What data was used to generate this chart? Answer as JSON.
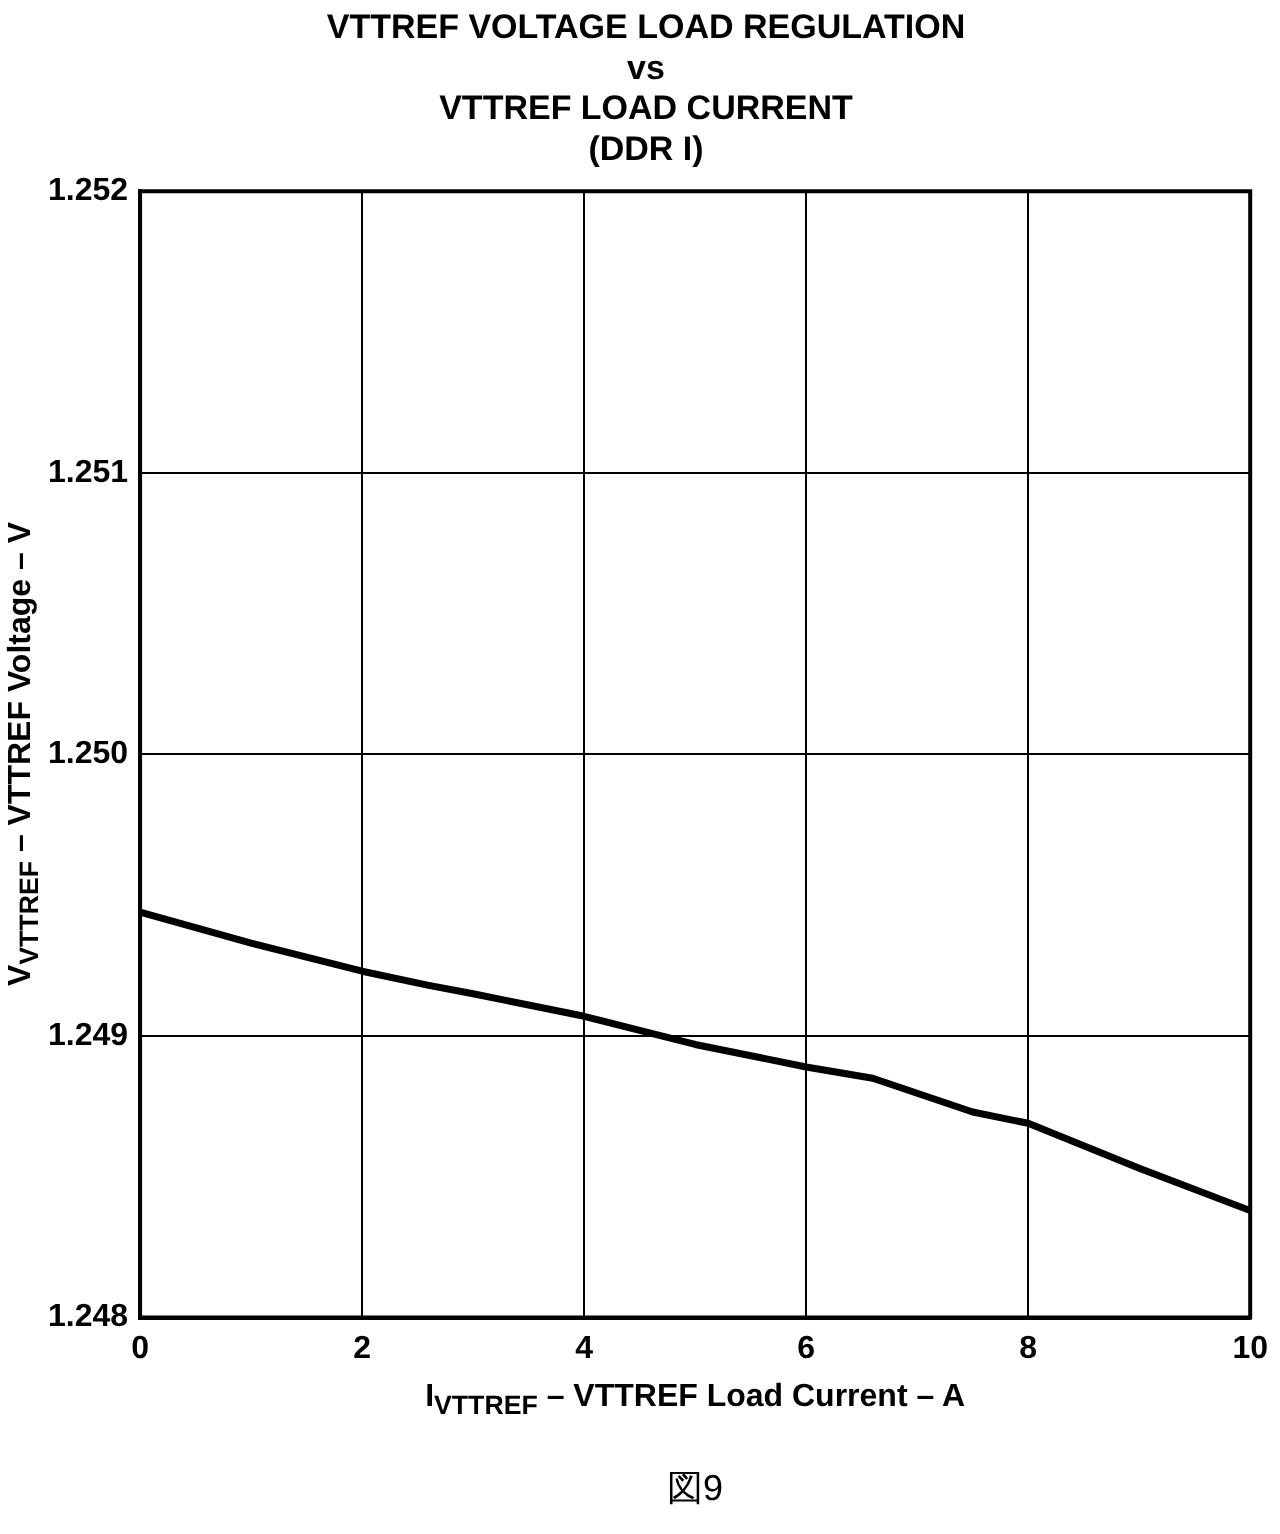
{
  "chart_data": {
    "type": "line",
    "title": "VTTREF VOLTAGE LOAD REGULATION\nvs\nVTTREF LOAD CURRENT\n(DDR I)",
    "xlabel": "I$_{VTTREF}$ – VTTREF Load Current – A",
    "ylabel": "V$_{VTTREF}$ – VTTREF Voltage – V",
    "annotations": [
      "図9"
    ],
    "x": [
      0,
      1,
      2,
      2.6,
      3,
      4,
      4.5,
      5,
      6,
      6.6,
      7.5,
      8,
      9,
      10
    ],
    "series": [
      {
        "color": "#000000",
        "values": [
          1.24944,
          1.24933,
          1.24923,
          1.24918,
          1.24915,
          1.24907,
          1.24902,
          1.24897,
          1.24889,
          1.24885,
          1.24873,
          1.24869,
          1.24853,
          1.24838
        ]
      }
    ],
    "xlim": [
      0,
      10
    ],
    "xticks": [
      0,
      2,
      4,
      6,
      8,
      10
    ],
    "ylim": [
      1.248,
      1.252
    ],
    "yticks": [
      {
        "value": 1.248,
        "label": "1.248"
      },
      {
        "value": 1.249,
        "label": "1.249"
      },
      {
        "value": 1.25,
        "label": "1.250"
      },
      {
        "value": 1.251,
        "label": "1.251"
      },
      {
        "value": 1.252,
        "label": "1.252"
      }
    ],
    "grid": true,
    "legend": false,
    "marker": "none",
    "line_style": "solid"
  }
}
